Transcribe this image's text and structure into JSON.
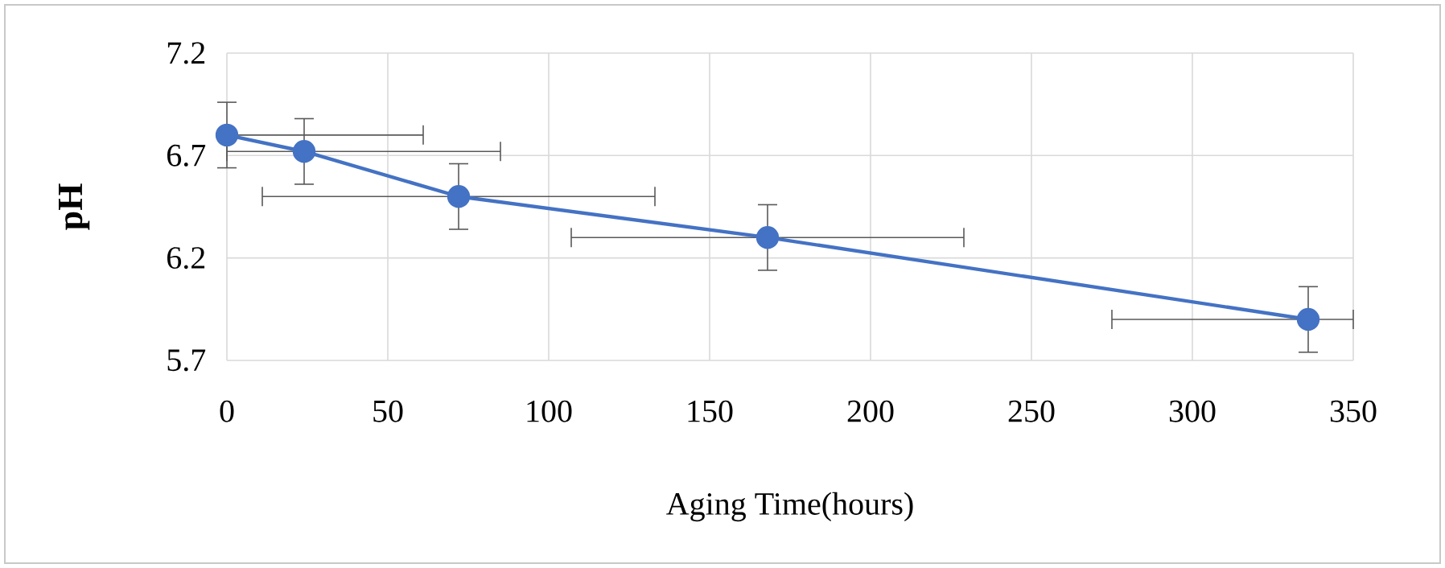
{
  "chart_data": {
    "type": "line",
    "xlabel": "Aging Time(hours)",
    "ylabel": "pH",
    "x": [
      0,
      24,
      72,
      168,
      336
    ],
    "series": [
      {
        "color": "#4472c4",
        "values": [
          6.8,
          6.72,
          6.5,
          6.3,
          5.9
        ],
        "errors": [
          0.16,
          0.16,
          0.16,
          0.16,
          0.16
        ],
        "xerrors": [
          [
            0,
            61
          ],
          [
            0,
            85
          ],
          [
            11,
            133
          ],
          [
            107,
            229
          ],
          [
            275,
            350
          ]
        ]
      }
    ],
    "xlim": [
      0,
      350
    ],
    "xticks": [
      0,
      50,
      100,
      150,
      200,
      250,
      300,
      350
    ],
    "ylim": [
      5.7,
      7.2
    ],
    "yticks": [
      5.7,
      6.2,
      6.7,
      7.2
    ],
    "grid": true,
    "marker": "circle",
    "line_style": "solid"
  }
}
